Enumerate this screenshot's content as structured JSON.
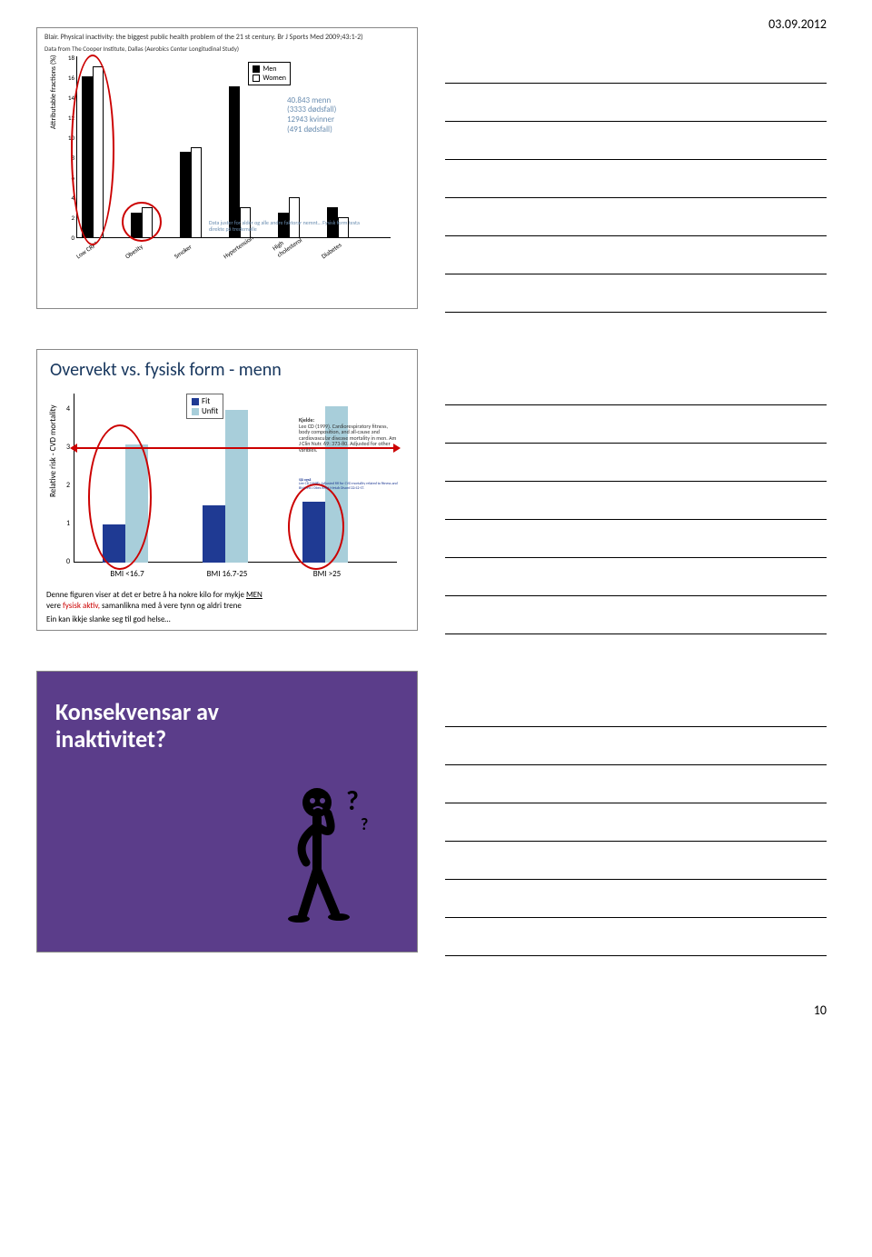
{
  "page": {
    "date": "03.09.2012",
    "number": "10"
  },
  "slide1": {
    "title": "Blair. Physical inactivity: the biggest public health problem of the 21 st century. Br J Sports Med 2009;43:1-2)",
    "subtitle": "Data from The Cooper Institute, Dallas (Aerobics Center Longitudinal Study)",
    "ylabel": "Attributable fractions (%)",
    "yticks": [
      "18",
      "16",
      "14",
      "12",
      "10",
      "8",
      "6",
      "4",
      "2",
      "0"
    ],
    "legend_m": "Men",
    "legend_w": "Women",
    "cats": [
      {
        "l": "Low CRF*",
        "m": 16,
        "f": 17,
        "x": 0
      },
      {
        "l": "Obesity",
        "m": 2.5,
        "f": 3,
        "x": 54
      },
      {
        "l": "Smoker",
        "m": 8.5,
        "f": 9,
        "x": 108
      },
      {
        "l": "Hypertension",
        "m": 15,
        "f": 3,
        "x": 162
      },
      {
        "l": "High cholesterol",
        "m": 2.5,
        "f": 4,
        "x": 216
      },
      {
        "l": "Diabetes",
        "m": 3,
        "f": 2,
        "x": 270
      }
    ],
    "annot_l1": "40.843 menn",
    "annot_l2": "(3333 dødsfall)",
    "annot_l3": "12943 kvinner",
    "annot_l4": "(491 dødsfall)",
    "footer": "Data juster for alder og alle andre faktorar nemnt… Fysisk form testa direkte på tredemølle"
  },
  "slide2": {
    "title": "Overvekt vs. fysisk form - menn",
    "ylabel": "Relative risk - CVD mortality",
    "yticks": [
      "4",
      "3",
      "2",
      "1",
      "0"
    ],
    "legend_fit": "Fit",
    "legend_unfit": "Unfit",
    "groups": [
      {
        "l": "BMI <16.7",
        "fit": 1.0,
        "unfit": 3.1,
        "x": 40
      },
      {
        "l": "BMI 16.7-25",
        "fit": 1.5,
        "unfit": 4.0,
        "x": 150
      },
      {
        "l": "BMI >25",
        "fit": 1.6,
        "unfit": 4.1,
        "x": 260
      }
    ],
    "kjelde_h": "Kjelde:",
    "kjelde": "Lee CD (1999). Cardiorespiratory fitness, body composition, and all-cause and cardiovascular disease mortality in men. Am J Clin Nutr. 69: 373-80. Adjusted for other varibles.",
    "kjelde2_h": "Sjå også",
    "kjelde2": "Lee CD (1998). Adjusted RR for CVD mortality related to fitness and BMI. Int J Obes Relat Metab Disord 22:S2-S7.",
    "cap1a": "Denne figuren viser at det er betre å ha nokre kilo for mykje ",
    "cap1b": "MEN",
    "cap2a": "vere ",
    "cap2b": "fysisk aktiv, ",
    "cap2c": "samanlikna med å vere tynn og aldri trene",
    "cap3": "Ein kan ikkje slanke seg til god helse…"
  },
  "slide3": {
    "title_l1": "Konsekvensar av",
    "title_l2": "inaktivitet?"
  },
  "colors": {
    "accent": "#6a8db0",
    "red": "#c00000",
    "fit": "#1f3a93",
    "unfit": "#a8ceda",
    "purple": "#5b3d8a"
  }
}
